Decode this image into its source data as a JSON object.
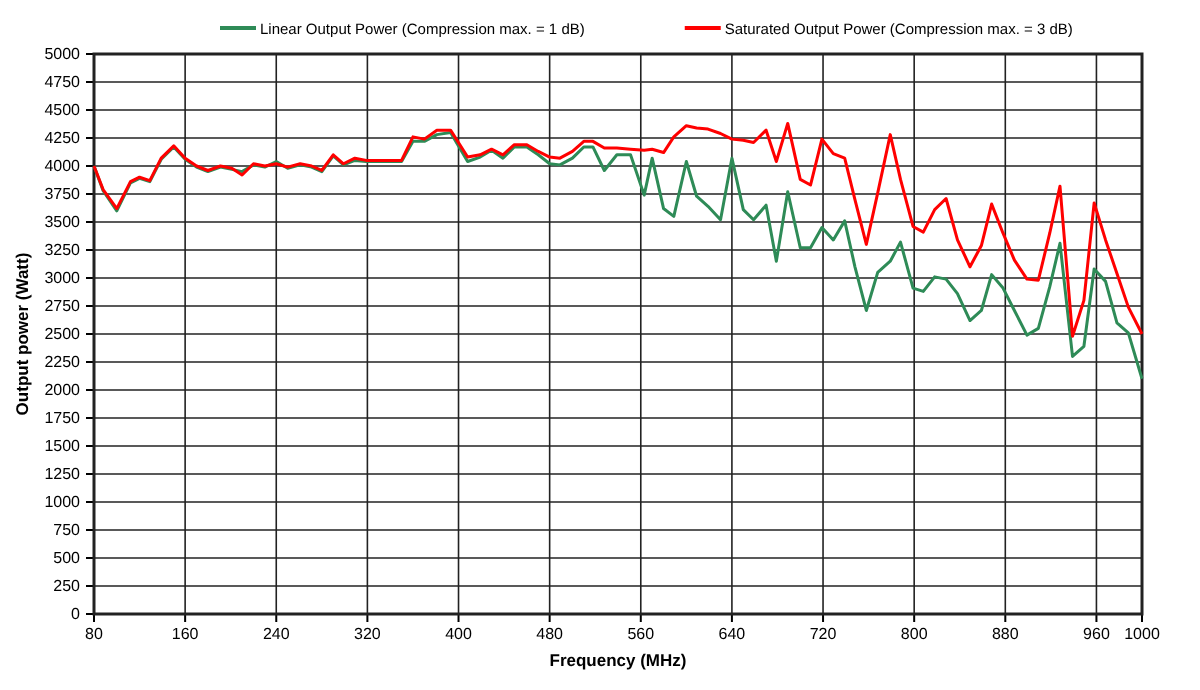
{
  "chart_data": {
    "type": "line",
    "xlabel": "Frequency (MHz)",
    "ylabel": "Output power (Watt)",
    "x": [
      80,
      88,
      100,
      112,
      120,
      129,
      139,
      150,
      160,
      170,
      180,
      191,
      201,
      210,
      220,
      230,
      240,
      250,
      261,
      271,
      280,
      290,
      299,
      309,
      319,
      329,
      340,
      350,
      360,
      370,
      381,
      393,
      408,
      419,
      429,
      439,
      449,
      460,
      470,
      480,
      489,
      500,
      510,
      518,
      528,
      539,
      551,
      563,
      570,
      580,
      589,
      600,
      609,
      619,
      630,
      640,
      650,
      659,
      670,
      679,
      689,
      700,
      709,
      719,
      729,
      739,
      748,
      758,
      768,
      779,
      788,
      799,
      808,
      818,
      828,
      838,
      849,
      859,
      868,
      878,
      888,
      899,
      909,
      919,
      928,
      939,
      949,
      958,
      968,
      978,
      988,
      1000
    ],
    "series": [
      {
        "name": "Linear Output Power (Compression max. =  1 dB)",
        "color": "#2e8b57",
        "values": [
          4000,
          3780,
          3600,
          3850,
          3890,
          3860,
          4060,
          4170,
          4060,
          3990,
          3950,
          3990,
          3970,
          3950,
          4010,
          3990,
          4040,
          3980,
          4010,
          3990,
          3950,
          4090,
          4010,
          4050,
          4040,
          4040,
          4040,
          4040,
          4220,
          4220,
          4280,
          4300,
          4040,
          4080,
          4140,
          4070,
          4170,
          4170,
          4100,
          4020,
          4010,
          4070,
          4170,
          4170,
          3960,
          4100,
          4100,
          3740,
          4070,
          3620,
          3550,
          4040,
          3730,
          3640,
          3520,
          4070,
          3610,
          3520,
          3650,
          3150,
          3770,
          3270,
          3270,
          3450,
          3340,
          3510,
          3100,
          2710,
          3050,
          3150,
          3320,
          2910,
          2880,
          3010,
          2990,
          2860,
          2620,
          2710,
          3030,
          2910,
          2710,
          2490,
          2550,
          2920,
          3310,
          2300,
          2390,
          3080,
          2970,
          2600,
          2510,
          2100
        ]
      },
      {
        "name": "Saturated Output Power (Compression max. =  3 dB)",
        "color": "#ff0000",
        "values": [
          4000,
          3790,
          3620,
          3860,
          3900,
          3870,
          4070,
          4180,
          4070,
          4000,
          3960,
          4000,
          3980,
          3920,
          4020,
          4000,
          4020,
          3990,
          4020,
          4000,
          3960,
          4100,
          4020,
          4070,
          4050,
          4050,
          4050,
          4050,
          4260,
          4240,
          4320,
          4320,
          4080,
          4100,
          4150,
          4100,
          4190,
          4190,
          4130,
          4080,
          4070,
          4130,
          4220,
          4220,
          4160,
          4160,
          4150,
          4140,
          4150,
          4120,
          4260,
          4360,
          4340,
          4330,
          4290,
          4240,
          4230,
          4210,
          4320,
          4040,
          4380,
          3880,
          3830,
          4240,
          4110,
          4070,
          3700,
          3300,
          3760,
          4280,
          3880,
          3460,
          3410,
          3610,
          3710,
          3340,
          3100,
          3290,
          3660,
          3400,
          3160,
          2990,
          2980,
          3400,
          3820,
          2480,
          2800,
          3670,
          3340,
          3040,
          2740,
          2500
        ]
      }
    ],
    "xlim": [
      80,
      1000
    ],
    "xticks": [
      80,
      160,
      240,
      320,
      400,
      480,
      560,
      640,
      720,
      800,
      880,
      960,
      1000
    ],
    "ylim": [
      0,
      5000
    ],
    "yticks": [
      0,
      250,
      500,
      750,
      1000,
      1250,
      1500,
      1750,
      2000,
      2250,
      2500,
      2750,
      3000,
      3250,
      3500,
      3750,
      4000,
      4250,
      4500,
      4750,
      5000
    ],
    "grid": true,
    "legend": "top",
    "marker": "none",
    "line_style": "solid"
  }
}
